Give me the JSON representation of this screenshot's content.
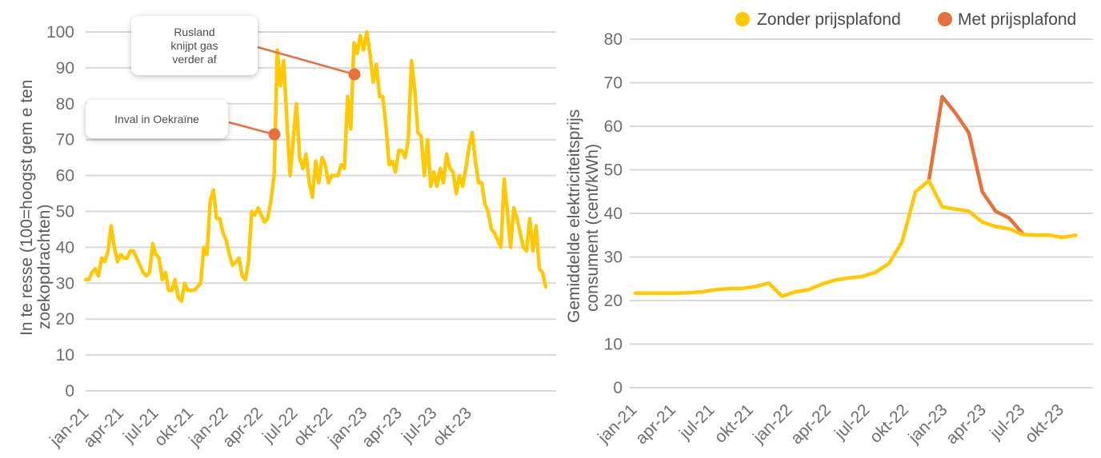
{
  "colors": {
    "yellow": "#FFC800",
    "orange": "#E8703A",
    "grid": "#D9D9D9",
    "text": "#6E6E6E"
  },
  "chart_data": [
    {
      "type": "line",
      "title": "",
      "ylabel_lines": [
        "In te resse  (100=hoogst gem e ten",
        "zoekopdrachten)"
      ],
      "xlabel": "",
      "ylim": [
        0,
        100
      ],
      "yticks": [
        0,
        10,
        20,
        30,
        40,
        50,
        60,
        70,
        80,
        90,
        100
      ],
      "grid": true,
      "x_tick_labels": [
        "jan-21",
        "apr-21",
        "jul-21",
        "okt-21",
        "jan-22",
        "apr-22",
        "jul-22",
        "okt-22",
        "jan-23",
        "apr-23",
        "jul-23",
        "okt-23"
      ],
      "series": [
        {
          "color": "#FFC800",
          "x_start": "jan-21",
          "interval": "week",
          "values": [
            31,
            31,
            33,
            34,
            32,
            37,
            36,
            39,
            46,
            40,
            36,
            38,
            37,
            37,
            39,
            39,
            37,
            35,
            33,
            32,
            33,
            41,
            38,
            37,
            31,
            33,
            28,
            28,
            31,
            26,
            25,
            30,
            28,
            28,
            28,
            29,
            30,
            40,
            38,
            53,
            56,
            48,
            48,
            44,
            42,
            38,
            35,
            36,
            37,
            32,
            31,
            36,
            50,
            49,
            51,
            49,
            47,
            48,
            53,
            60,
            95,
            85,
            92,
            75,
            60,
            70,
            80,
            65,
            62,
            66,
            58,
            54,
            64,
            58,
            65,
            63,
            58,
            60,
            60,
            60,
            63,
            62,
            82,
            73,
            97,
            94,
            99,
            95,
            100,
            94,
            86,
            91,
            82,
            82,
            74,
            63,
            64,
            61,
            67,
            67,
            65,
            70,
            92,
            84,
            72,
            71,
            60,
            70,
            57,
            61,
            57,
            62,
            58,
            66,
            62,
            61,
            55,
            60,
            57,
            62,
            68,
            72,
            64,
            58,
            58,
            52,
            50,
            45,
            44,
            42,
            40,
            59,
            50,
            40,
            51,
            48,
            44,
            40,
            39,
            48,
            39,
            46,
            34,
            33,
            29
          ]
        }
      ],
      "annotations": [
        {
          "text_lines": [
            "Inval in Oekraïne"
          ],
          "x": "feb-22",
          "y": 71
        },
        {
          "text_lines": [
            "Rusland",
            "knijpt gas",
            "verder af"
          ],
          "x": "sep-22",
          "y": 88
        }
      ]
    },
    {
      "type": "line",
      "title": "",
      "ylabel_lines": [
        "Gemiddelde elektriciteitsprijs",
        "consument (cent/kWh)"
      ],
      "xlabel": "",
      "ylim": [
        0,
        80
      ],
      "yticks": [
        0,
        10,
        20,
        30,
        40,
        50,
        60,
        70,
        80
      ],
      "grid": true,
      "legend_position": "top-right",
      "x_tick_labels": [
        "jan-21",
        "apr-21",
        "jul-21",
        "okt-21",
        "jan-22",
        "apr-22",
        "jul-22",
        "okt-22",
        "jan-23",
        "apr-23",
        "jul-23",
        "okt-23"
      ],
      "categories": [
        "jan-21",
        "feb-21",
        "mrt-21",
        "apr-21",
        "mei-21",
        "jun-21",
        "jul-21",
        "aug-21",
        "sep-21",
        "okt-21",
        "nov-21",
        "dec-21",
        "jan-22",
        "feb-22",
        "mrt-22",
        "apr-22",
        "mei-22",
        "jun-22",
        "jul-22",
        "aug-22",
        "sep-22",
        "okt-22",
        "nov-22",
        "dec-22",
        "jan-23",
        "feb-23",
        "mrt-23",
        "apr-23",
        "mei-23",
        "jun-23",
        "jul-23",
        "aug-23",
        "sep-23",
        "okt-23",
        "nov-23"
      ],
      "series": [
        {
          "name": "Zonder prijsplafond",
          "color": "#FFC800",
          "values": [
            21.7,
            21.7,
            21.7,
            21.7,
            21.8,
            22.0,
            22.5,
            22.7,
            22.8,
            23.2,
            24.0,
            21.0,
            22.0,
            22.5,
            23.8,
            24.7,
            25.2,
            25.5,
            26.5,
            28.5,
            33.5,
            45.0,
            47.5,
            41.5,
            41.0,
            40.5,
            38.0,
            37.0,
            36.5,
            35.2,
            35.0,
            35.0,
            34.5,
            35.0,
            null
          ]
        },
        {
          "name": "Met prijsplafond",
          "color": "#E8703A",
          "values": [
            null,
            null,
            null,
            null,
            null,
            null,
            null,
            null,
            null,
            null,
            null,
            null,
            null,
            null,
            null,
            null,
            null,
            null,
            null,
            null,
            null,
            null,
            47.5,
            66.8,
            63.0,
            58.5,
            45.0,
            40.5,
            39.0,
            35.5,
            null,
            null,
            null,
            null,
            null
          ]
        }
      ]
    }
  ]
}
